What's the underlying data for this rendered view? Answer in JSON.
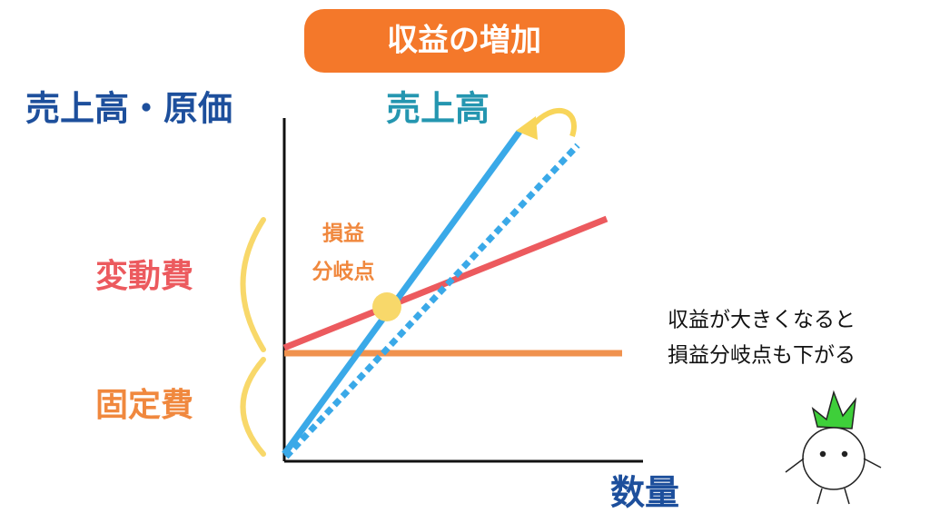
{
  "banner": {
    "title": "収益の増加"
  },
  "axes": {
    "y_label": "売上高・原価",
    "x_label": "数量"
  },
  "labels": {
    "sales": "売上高",
    "variable_cost": "変動費",
    "fixed_cost": "固定費",
    "break_even": [
      "損益",
      "分岐点"
    ]
  },
  "note": [
    "収益が大きくなると",
    "損益分岐点も下がる"
  ]
}
